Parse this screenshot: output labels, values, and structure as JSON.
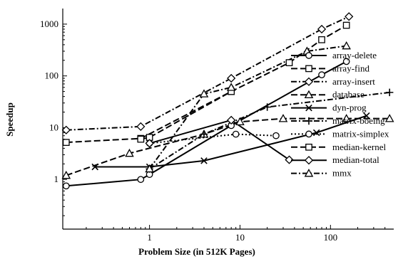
{
  "chart_data": {
    "type": "line",
    "xlabel": "Problem Size (in 512K Pages)",
    "ylabel": "Speedup",
    "xscale": "log",
    "yscale": "log",
    "xlim": [
      0.11,
      500
    ],
    "ylim": [
      0.11,
      2000
    ],
    "x_ticks": [
      {
        "value": 1,
        "label": "1"
      },
      {
        "value": 10,
        "label": "10"
      },
      {
        "value": 100,
        "label": "100"
      }
    ],
    "y_ticks": [
      {
        "value": 1,
        "label": "1"
      },
      {
        "value": 10,
        "label": "10"
      },
      {
        "value": 100,
        "label": "100"
      },
      {
        "value": 1000,
        "label": "1000"
      }
    ],
    "grid": false,
    "legend_position": "right",
    "series": [
      {
        "name": "array-delete",
        "marker": "circle",
        "dash": "solid",
        "points": [
          [
            0.12,
            0.75
          ],
          [
            0.8,
            1.0
          ],
          [
            1.0,
            1.25
          ],
          [
            8.0,
            11.0
          ],
          [
            80,
            105
          ],
          [
            150,
            190
          ]
        ]
      },
      {
        "name": "array-find",
        "marker": "square",
        "dash": "long",
        "points": [
          [
            0.12,
            5.2
          ],
          [
            0.8,
            6.2
          ],
          [
            8.0,
            50
          ],
          [
            35,
            180
          ],
          [
            80,
            500
          ],
          [
            150,
            950
          ]
        ]
      },
      {
        "name": "array-insert",
        "marker": "diamond",
        "dash": "dashdot",
        "points": [
          [
            0.12,
            9.0
          ],
          [
            0.8,
            10.5
          ],
          [
            8.0,
            90
          ],
          [
            80,
            800
          ],
          [
            160,
            1400
          ]
        ]
      },
      {
        "name": "database",
        "marker": "triangle",
        "dash": "long",
        "points": [
          [
            0.12,
            1.2
          ],
          [
            0.6,
            3.2
          ],
          [
            4.0,
            7.5
          ],
          [
            10,
            13
          ],
          [
            30,
            15
          ],
          [
            150,
            15
          ],
          [
            450,
            15
          ]
        ]
      },
      {
        "name": "dyn-prog",
        "marker": "x",
        "dash": "solid",
        "points": [
          [
            0.25,
            1.75
          ],
          [
            1.0,
            1.75
          ],
          [
            4.0,
            2.3
          ],
          [
            70,
            8.0
          ],
          [
            250,
            17
          ]
        ]
      },
      {
        "name": "matrix-boeing",
        "marker": "plus",
        "dash": "dashdot",
        "points": [
          [
            1.0,
            1.6
          ],
          [
            4.0,
            7.5
          ],
          [
            20,
            25
          ],
          [
            450,
            48
          ]
        ]
      },
      {
        "name": "matrix-simplex",
        "marker": "circle",
        "dash": "dotted",
        "points": [
          [
            1.0,
            5.0
          ],
          [
            9.0,
            7.5
          ],
          [
            25,
            7.0
          ]
        ]
      },
      {
        "name": "median-kernel",
        "marker": "square",
        "dash": "long",
        "points": [
          [
            0.8,
            6.0
          ],
          [
            1.0,
            6.5
          ],
          [
            8.0,
            50
          ]
        ]
      },
      {
        "name": "median-total",
        "marker": "diamond",
        "dash": "solid",
        "points": [
          [
            1.0,
            5.0
          ],
          [
            8.0,
            14.0
          ],
          [
            35,
            2.4
          ]
        ]
      },
      {
        "name": "mmx",
        "marker": "triangle",
        "dash": "dashdot",
        "points": [
          [
            1.0,
            1.6
          ],
          [
            4.0,
            45
          ],
          [
            8.0,
            60
          ],
          [
            55,
            300
          ],
          [
            150,
            380
          ]
        ]
      }
    ]
  }
}
